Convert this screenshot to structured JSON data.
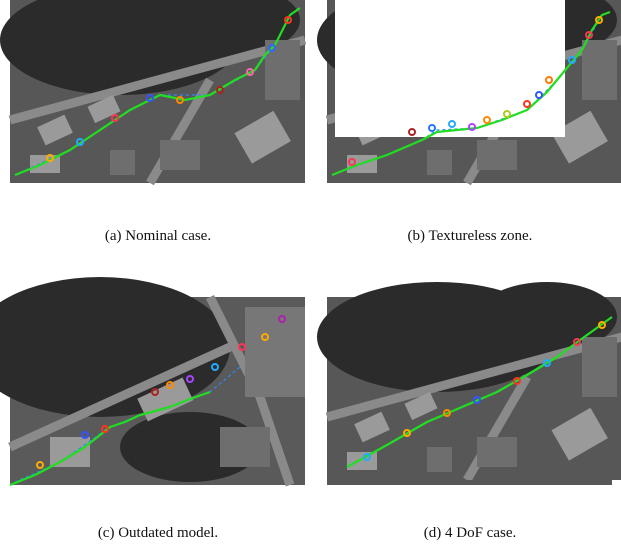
{
  "figures": [
    {
      "caption": "(a) Nominal case."
    },
    {
      "caption": "(b) Textureless zone."
    },
    {
      "caption": "(c) Outdated model."
    },
    {
      "caption": "(d) 4 DoF case."
    }
  ]
}
